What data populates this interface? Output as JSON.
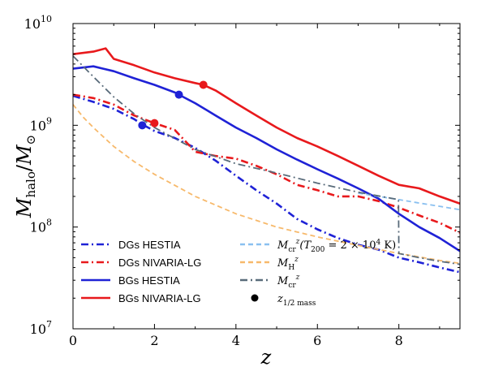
{
  "chart_data": {
    "type": "line",
    "xlabel": "z",
    "ylabel": "M_halo/M_⊙",
    "xlim": [
      0,
      9.5
    ],
    "ylim_log10": [
      7,
      10
    ],
    "y_scale": "log",
    "x_ticks": [
      "0",
      "2",
      "4",
      "6",
      "8"
    ],
    "y_ticks": [
      {
        "base": "10",
        "exp": "7",
        "log10": 7
      },
      {
        "base": "10",
        "exp": "8",
        "log10": 8
      },
      {
        "base": "10",
        "exp": "9",
        "log10": 9
      },
      {
        "base": "10",
        "exp": "10",
        "log10": 10
      }
    ],
    "grid": false,
    "legend_placement": "bottom-left, two columns",
    "colors": {
      "hestia": "#1f22d6",
      "nivaria": "#e8191c",
      "t200": "#8ac0f0",
      "mh": "#f7b96b",
      "mcr": "#596b7a"
    },
    "series": [
      {
        "key": "dgs_hestia",
        "name": "DGs HESTIA",
        "color": "#1f22d6",
        "style": "dashdot",
        "x": [
          0,
          0.5,
          1.0,
          1.5,
          1.7,
          2.0,
          2.5,
          3.0,
          3.5,
          4.0,
          4.5,
          5.0,
          5.5,
          6.0,
          6.5,
          7.0,
          7.5,
          8.0,
          8.5,
          9.0,
          9.5
        ],
        "y": [
          1950000000.0,
          1700000000.0,
          1450000000.0,
          1150000000.0,
          1020000000.0,
          880000000.0,
          750000000.0,
          600000000.0,
          450000000.0,
          320000000.0,
          230000000.0,
          170000000.0,
          120000000.0,
          95000000.0,
          78000000.0,
          67000000.0,
          60000000.0,
          50000000.0,
          45000000.0,
          40000000.0,
          36000000.0
        ]
      },
      {
        "key": "dgs_nivaria",
        "name": "DGs NIVARIA-LG",
        "color": "#e8191c",
        "style": "dashdot",
        "x": [
          0,
          0.5,
          1.0,
          1.5,
          2.0,
          2.5,
          3.0,
          3.5,
          4.0,
          4.5,
          5.0,
          5.5,
          6.0,
          6.5,
          7.0,
          7.5,
          8.0,
          8.5,
          9.0,
          9.5
        ],
        "y": [
          2000000000.0,
          1850000000.0,
          1600000000.0,
          1250000000.0,
          1050000000.0,
          900000000.0,
          550000000.0,
          500000000.0,
          470000000.0,
          400000000.0,
          330000000.0,
          260000000.0,
          230000000.0,
          200000000.0,
          200000000.0,
          180000000.0,
          155000000.0,
          130000000.0,
          110000000.0,
          88000000.0
        ]
      },
      {
        "key": "bgs_hestia",
        "name": "BGs HESTIA",
        "color": "#1f22d6",
        "style": "solid",
        "x": [
          0,
          0.5,
          1.0,
          1.5,
          2.0,
          2.5,
          2.6,
          3.0,
          3.5,
          4.0,
          4.5,
          5.0,
          5.5,
          6.0,
          6.5,
          7.0,
          7.5,
          8.0,
          8.5,
          9.0,
          9.5
        ],
        "y": [
          3600000000.0,
          3800000000.0,
          3400000000.0,
          2900000000.0,
          2500000000.0,
          2100000000.0,
          2000000000.0,
          1650000000.0,
          1250000000.0,
          950000000.0,
          750000000.0,
          580000000.0,
          460000000.0,
          370000000.0,
          300000000.0,
          240000000.0,
          190000000.0,
          135000000.0,
          100000000.0,
          78000000.0,
          58000000.0
        ]
      },
      {
        "key": "bgs_nivaria",
        "name": "BGs NIVARIA-LG",
        "color": "#e8191c",
        "style": "solid",
        "x": [
          0,
          0.5,
          0.8,
          1.0,
          1.5,
          2.0,
          2.5,
          3.0,
          3.2,
          3.5,
          4.0,
          4.5,
          5.0,
          5.5,
          6.0,
          6.5,
          7.0,
          7.5,
          8.0,
          8.5,
          9.0,
          9.5
        ],
        "y": [
          5000000000.0,
          5300000000.0,
          5700000000.0,
          4500000000.0,
          3900000000.0,
          3300000000.0,
          2900000000.0,
          2600000000.0,
          2500000000.0,
          2200000000.0,
          1650000000.0,
          1250000000.0,
          950000000.0,
          750000000.0,
          620000000.0,
          500000000.0,
          400000000.0,
          320000000.0,
          260000000.0,
          240000000.0,
          200000000.0,
          170000000.0
        ]
      },
      {
        "key": "mcr_t200",
        "name": "M_cr^z(T_200 = 2×10^4 K)",
        "color": "#8ac0f0",
        "style": "dashed",
        "x": [
          7.0,
          7.5,
          8.0,
          8.5,
          9.0,
          9.5
        ],
        "y": [
          215000000.0,
          200000000.0,
          186000000.0,
          172000000.0,
          160000000.0,
          148000000.0
        ]
      },
      {
        "key": "mh",
        "name": "M_H^z",
        "color": "#f7b96b",
        "style": "dashed",
        "x": [
          0,
          0.25,
          0.5,
          1.0,
          1.5,
          2.0,
          3.0,
          4.0,
          5.0,
          6.0,
          7.0,
          8.0,
          9.0,
          9.5
        ],
        "y": [
          1600000000.0,
          1200000000.0,
          950000000.0,
          620000000.0,
          440000000.0,
          330000000.0,
          200000000.0,
          135000000.0,
          100000000.0,
          80000000.0,
          66000000.0,
          55000000.0,
          47000000.0,
          44000000.0
        ]
      },
      {
        "key": "mcr",
        "name": "M_cr^z",
        "color": "#596b7a",
        "style": "dashdot",
        "x": [
          0,
          0.5,
          1.0,
          1.5,
          2.0,
          3.0,
          4.0,
          5.0,
          6.0,
          7.0,
          7.99,
          8.0,
          8.5,
          9.0,
          9.5
        ],
        "y": [
          4800000000.0,
          3000000000.0,
          1900000000.0,
          1300000000.0,
          950000000.0,
          580000000.0,
          420000000.0,
          340000000.0,
          270000000.0,
          220000000.0,
          186000000.0,
          55000000.0,
          50000000.0,
          46000000.0,
          43000000.0
        ]
      }
    ],
    "half_mass_points": [
      {
        "x": 1.7,
        "y": 1000000000.0,
        "color": "#1f22d6"
      },
      {
        "x": 2.0,
        "y": 1050000000.0,
        "color": "#e8191c"
      },
      {
        "x": 2.6,
        "y": 2000000000.0,
        "color": "#1f22d6"
      },
      {
        "x": 3.2,
        "y": 2500000000.0,
        "color": "#e8191c"
      }
    ],
    "legend": [
      {
        "label": "DGs HESTIA",
        "color": "#1f22d6",
        "style": "dashdot"
      },
      {
        "label": "DGs NIVARIA-LG",
        "color": "#e8191c",
        "style": "dashdot"
      },
      {
        "label": "BGs HESTIA",
        "color": "#1f22d6",
        "style": "solid"
      },
      {
        "label": "BGs NIVARIA-LG",
        "color": "#e8191c",
        "style": "solid"
      }
    ],
    "legend_right": [
      {
        "label": "M_cr^z(T_200 = 2×10^4 K)",
        "color": "#8ac0f0",
        "style": "dashed"
      },
      {
        "label": "M_H^z",
        "color": "#f7b96b",
        "style": "dashed"
      },
      {
        "label": "M_cr^z",
        "color": "#596b7a",
        "style": "dashdot"
      },
      {
        "label": "z_1/2 mass",
        "color": "#000000",
        "style": "marker"
      }
    ]
  }
}
